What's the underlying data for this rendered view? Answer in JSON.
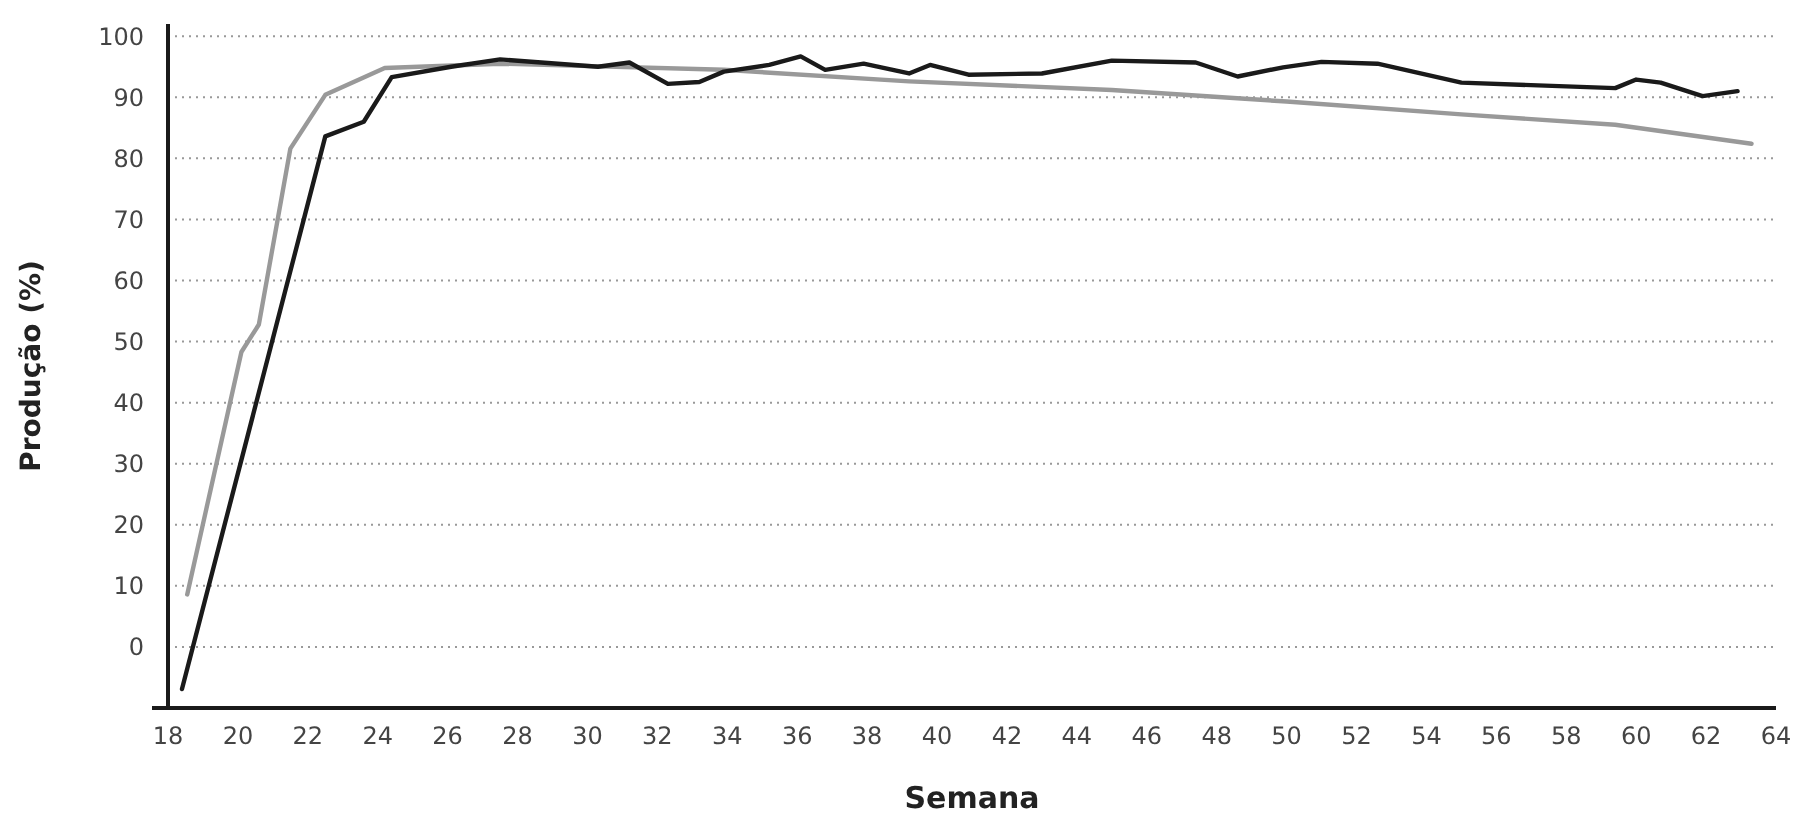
{
  "chart_data": {
    "type": "line",
    "xlabel": "Semana",
    "ylabel": "Produção (%)",
    "xlim": [
      18,
      64
    ],
    "xticks": [
      18,
      20,
      22,
      24,
      26,
      28,
      30,
      32,
      34,
      36,
      38,
      40,
      42,
      44,
      46,
      48,
      50,
      52,
      54,
      56,
      58,
      60,
      62,
      64
    ],
    "ylim": [
      -10,
      102
    ],
    "yticks": [
      0,
      10,
      20,
      30,
      40,
      50,
      60,
      70,
      80,
      90,
      100
    ],
    "grid": "y",
    "marker": "none",
    "line_style": "solid",
    "series": [
      {
        "color": "#999999",
        "x": [
          18.55,
          20.1,
          20.6,
          21.5,
          22.5,
          24.2,
          27.5,
          33.9,
          39.2,
          45,
          48.7,
          50,
          55,
          59.4,
          63.3
        ],
        "values": [
          8.6,
          48.3,
          52.8,
          81.6,
          90.4,
          94.8,
          95.5,
          94.5,
          92.6,
          91.2,
          89.8,
          89.3,
          87.2,
          85.5,
          82.4
        ]
      },
      {
        "color": "#1a1a1a",
        "x": [
          18.4,
          22.5,
          23.6,
          24.4,
          26.1,
          27.5,
          30.3,
          31.2,
          32.3,
          33.2,
          33.9,
          35.2,
          36.1,
          36.8,
          37.9,
          39.2,
          39.8,
          40.9,
          43,
          45,
          47.4,
          48.6,
          49.9,
          51,
          52.6,
          55,
          59.4,
          60,
          60.7,
          61.9,
          62.9
        ],
        "values": [
          -6.9,
          83.6,
          86,
          93.3,
          95,
          96.2,
          95,
          95.7,
          92.2,
          92.5,
          94.2,
          95.3,
          96.7,
          94.5,
          95.5,
          93.9,
          95.3,
          93.7,
          93.9,
          96,
          95.7,
          93.4,
          94.9,
          95.8,
          95.5,
          92.4,
          91.5,
          92.9,
          92.4,
          90.2,
          91
        ]
      }
    ]
  }
}
